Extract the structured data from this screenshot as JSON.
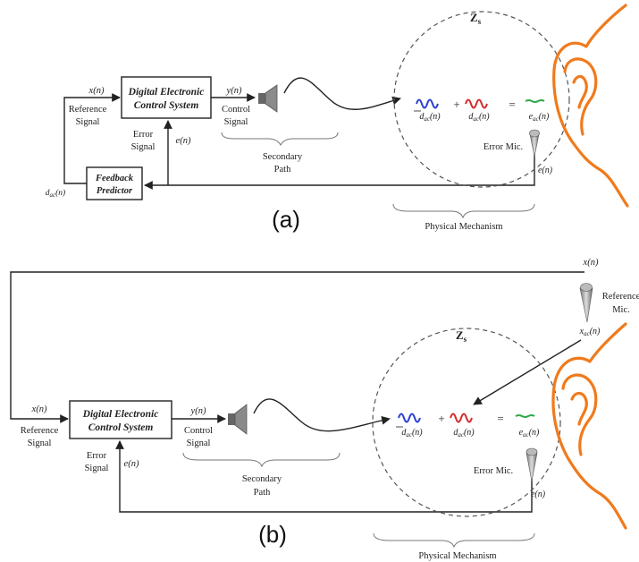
{
  "panel_a": {
    "caption": "(a)",
    "controller": {
      "line1": "Digital Electronic",
      "line2": "Control System"
    },
    "predictor": {
      "line1": "Feedback",
      "line2": "Predictor"
    },
    "x_n": "x(n)",
    "y_n": "y(n)",
    "e_n_left": "e(n)",
    "e_n_right": "e(n)",
    "d_label": "d",
    "d_sub": "ac",
    "d_arg": "(n)",
    "reference_signal": {
      "line1": "Reference",
      "line2": "Signal"
    },
    "error_signal": {
      "line1": "Error",
      "line2": "Signal"
    },
    "control_signal": {
      "line1": "Control",
      "line2": "Signal"
    },
    "secondary_path": {
      "line1": "Secondary",
      "line2": "Path"
    },
    "zone_label": "Z",
    "zone_sub": "s",
    "eq_dhat": "d",
    "eq_dhat_sub": "ac",
    "eq_dhat_arg": "(n)",
    "eq_d": "d",
    "eq_d_sub": "ac",
    "eq_d_arg": "(n)",
    "eq_e": "e",
    "eq_e_sub": "ac",
    "eq_e_arg": "(n)",
    "plus": "+",
    "equals": "=",
    "error_mic": "Error Mic.",
    "physical_mechanism": "Physical Mechanism"
  },
  "panel_b": {
    "caption": "(b)",
    "controller": {
      "line1": "Digital Electronic",
      "line2": "Control System"
    },
    "x_n_left": "x(n)",
    "x_n_top": "x(n)",
    "y_n": "y(n)",
    "e_n_left": "e(n)",
    "e_n_right": "e(n)",
    "reference_signal": {
      "line1": "Reference",
      "line2": "Signal"
    },
    "error_signal": {
      "line1": "Error",
      "line2": "Signal"
    },
    "control_signal": {
      "line1": "Control",
      "line2": "Signal"
    },
    "secondary_path": {
      "line1": "Secondary",
      "line2": "Path"
    },
    "reference_mic": {
      "line1": "Reference",
      "line2": "Mic."
    },
    "x_ac": "x",
    "x_ac_sub": "ac",
    "x_ac_arg": "(n)",
    "zone_label": "Z",
    "zone_sub": "s",
    "eq_dhat": "d",
    "eq_dhat_sub": "ac",
    "eq_dhat_arg": "(n)",
    "eq_d": "d",
    "eq_d_sub": "ac",
    "eq_d_arg": "(n)",
    "eq_e": "e",
    "eq_e_sub": "ac",
    "eq_e_arg": "(n)",
    "plus": "+",
    "equals": "=",
    "error_mic": "Error Mic.",
    "physical_mechanism": "Physical Mechanism"
  },
  "colors": {
    "wave_dhat": "#2b3fd6",
    "wave_d": "#d42a2a",
    "wave_e": "#2fa84a",
    "ear": "#f07a1c"
  }
}
